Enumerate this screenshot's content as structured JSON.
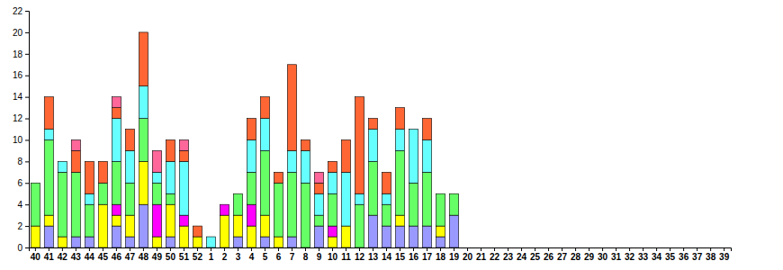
{
  "chart_data": {
    "type": "bar",
    "stacked": true,
    "categories": [
      "40",
      "41",
      "42",
      "43",
      "44",
      "45",
      "46",
      "47",
      "48",
      "49",
      "50",
      "51",
      "52",
      "1",
      "2",
      "3",
      "4",
      "5",
      "6",
      "7",
      "8",
      "9",
      "10",
      "11",
      "12",
      "13",
      "14",
      "15",
      "16",
      "17",
      "18",
      "19",
      "20",
      "21",
      "22",
      "23",
      "24",
      "25",
      "26",
      "27",
      "28",
      "29",
      "30",
      "31",
      "32",
      "33",
      "34",
      "35",
      "36",
      "37",
      "38",
      "39"
    ],
    "ylim": [
      0,
      22
    ],
    "yticks": [
      0,
      2,
      4,
      6,
      8,
      10,
      12,
      14,
      16,
      18,
      20,
      22
    ],
    "grid": false,
    "series": [
      {
        "color": "#9999ff",
        "values": [
          0,
          2,
          0,
          1,
          1,
          0,
          2,
          1,
          4,
          0,
          1,
          0,
          0,
          0,
          0,
          1,
          0,
          1,
          0,
          1,
          0,
          2,
          0,
          0,
          0,
          3,
          2,
          2,
          2,
          2,
          1,
          3,
          0,
          0,
          0,
          0,
          0,
          0,
          0,
          0,
          0,
          0,
          0,
          0,
          0,
          0,
          0,
          0,
          0,
          0,
          0,
          0
        ]
      },
      {
        "color": "#ffff00",
        "values": [
          2,
          1,
          1,
          0,
          0,
          4,
          1,
          2,
          4,
          1,
          3,
          2,
          1,
          0,
          3,
          2,
          2,
          2,
          1,
          0,
          0,
          0,
          1,
          2,
          0,
          0,
          0,
          1,
          0,
          0,
          1,
          0,
          0,
          0,
          0,
          0,
          0,
          0,
          0,
          0,
          0,
          0,
          0,
          0,
          0,
          0,
          0,
          0,
          0,
          0,
          0,
          0
        ]
      },
      {
        "color": "#ff00ff",
        "values": [
          0,
          0,
          0,
          0,
          0,
          0,
          1,
          0,
          0,
          3,
          0,
          1,
          0,
          0,
          1,
          0,
          2,
          0,
          0,
          0,
          0,
          0,
          1,
          0,
          0,
          0,
          0,
          0,
          0,
          0,
          0,
          0,
          0,
          0,
          0,
          0,
          0,
          0,
          0,
          0,
          0,
          0,
          0,
          0,
          0,
          0,
          0,
          0,
          0,
          0,
          0,
          0
        ]
      },
      {
        "color": "#66ff66",
        "values": [
          4,
          7,
          6,
          6,
          3,
          2,
          4,
          3,
          4,
          2,
          1,
          0,
          0,
          0,
          0,
          2,
          3,
          6,
          5,
          6,
          6,
          1,
          3,
          0,
          4,
          5,
          2,
          6,
          4,
          5,
          3,
          2,
          0,
          0,
          0,
          0,
          0,
          0,
          0,
          0,
          0,
          0,
          0,
          0,
          0,
          0,
          0,
          0,
          0,
          0,
          0,
          0
        ]
      },
      {
        "color": "#66ffff",
        "values": [
          0,
          1,
          1,
          0,
          1,
          0,
          4,
          3,
          3,
          1,
          3,
          5,
          0,
          1,
          0,
          0,
          3,
          3,
          0,
          2,
          3,
          2,
          2,
          5,
          1,
          3,
          1,
          2,
          5,
          3,
          0,
          0,
          0,
          0,
          0,
          0,
          0,
          0,
          0,
          0,
          0,
          0,
          0,
          0,
          0,
          0,
          0,
          0,
          0,
          0,
          0,
          0
        ]
      },
      {
        "color": "#ff6633",
        "values": [
          0,
          3,
          0,
          2,
          3,
          2,
          1,
          2,
          5,
          0,
          2,
          1,
          1,
          0,
          0,
          0,
          2,
          2,
          1,
          8,
          1,
          1,
          1,
          3,
          9,
          1,
          2,
          2,
          0,
          2,
          0,
          0,
          0,
          0,
          0,
          0,
          0,
          0,
          0,
          0,
          0,
          0,
          0,
          0,
          0,
          0,
          0,
          0,
          0,
          0,
          0,
          0
        ]
      },
      {
        "color": "#ff6699",
        "values": [
          0,
          0,
          0,
          1,
          0,
          0,
          1,
          0,
          0,
          2,
          0,
          1,
          0,
          0,
          0,
          0,
          0,
          0,
          0,
          0,
          0,
          1,
          0,
          0,
          0,
          0,
          0,
          0,
          0,
          0,
          0,
          0,
          0,
          0,
          0,
          0,
          0,
          0,
          0,
          0,
          0,
          0,
          0,
          0,
          0,
          0,
          0,
          0,
          0,
          0,
          0,
          0
        ]
      }
    ]
  }
}
